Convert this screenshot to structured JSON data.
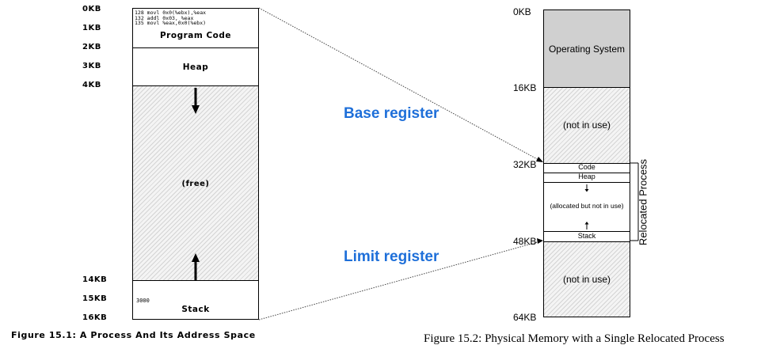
{
  "figure1": {
    "kb_labels": [
      "0KB",
      "1KB",
      "2KB",
      "3KB",
      "4KB",
      "14KB",
      "15KB",
      "16KB"
    ],
    "code_lines": [
      {
        "addr": "128",
        "instr": "movl 0x0(%ebx),%eax"
      },
      {
        "addr": "132",
        "instr": "addl 0x03, %eax"
      },
      {
        "addr": "135",
        "instr": "movl %eax,0x0(%ebx)"
      }
    ],
    "program_code_label": "Program Code",
    "heap_label": "Heap",
    "free_label": "(free)",
    "stack_value": "3000",
    "stack_label": "Stack",
    "caption": "Figure 15.1: A Process And Its Address Space"
  },
  "registers": {
    "base": "Base register",
    "limit": "Limit register"
  },
  "figure2": {
    "kb_labels": [
      "0KB",
      "16KB",
      "32KB",
      "48KB",
      "64KB"
    ],
    "os_label": "Operating System",
    "not_in_use_top": "(not in use)",
    "code_label": "Code",
    "heap_label": "Heap",
    "allocated_label": "(allocated but not in use)",
    "stack_label": "Stack",
    "not_in_use_bottom": "(not in use)",
    "relocated_label": "Relocated Process",
    "caption": "Figure 15.2: Physical Memory with a Single Relocated Process"
  }
}
